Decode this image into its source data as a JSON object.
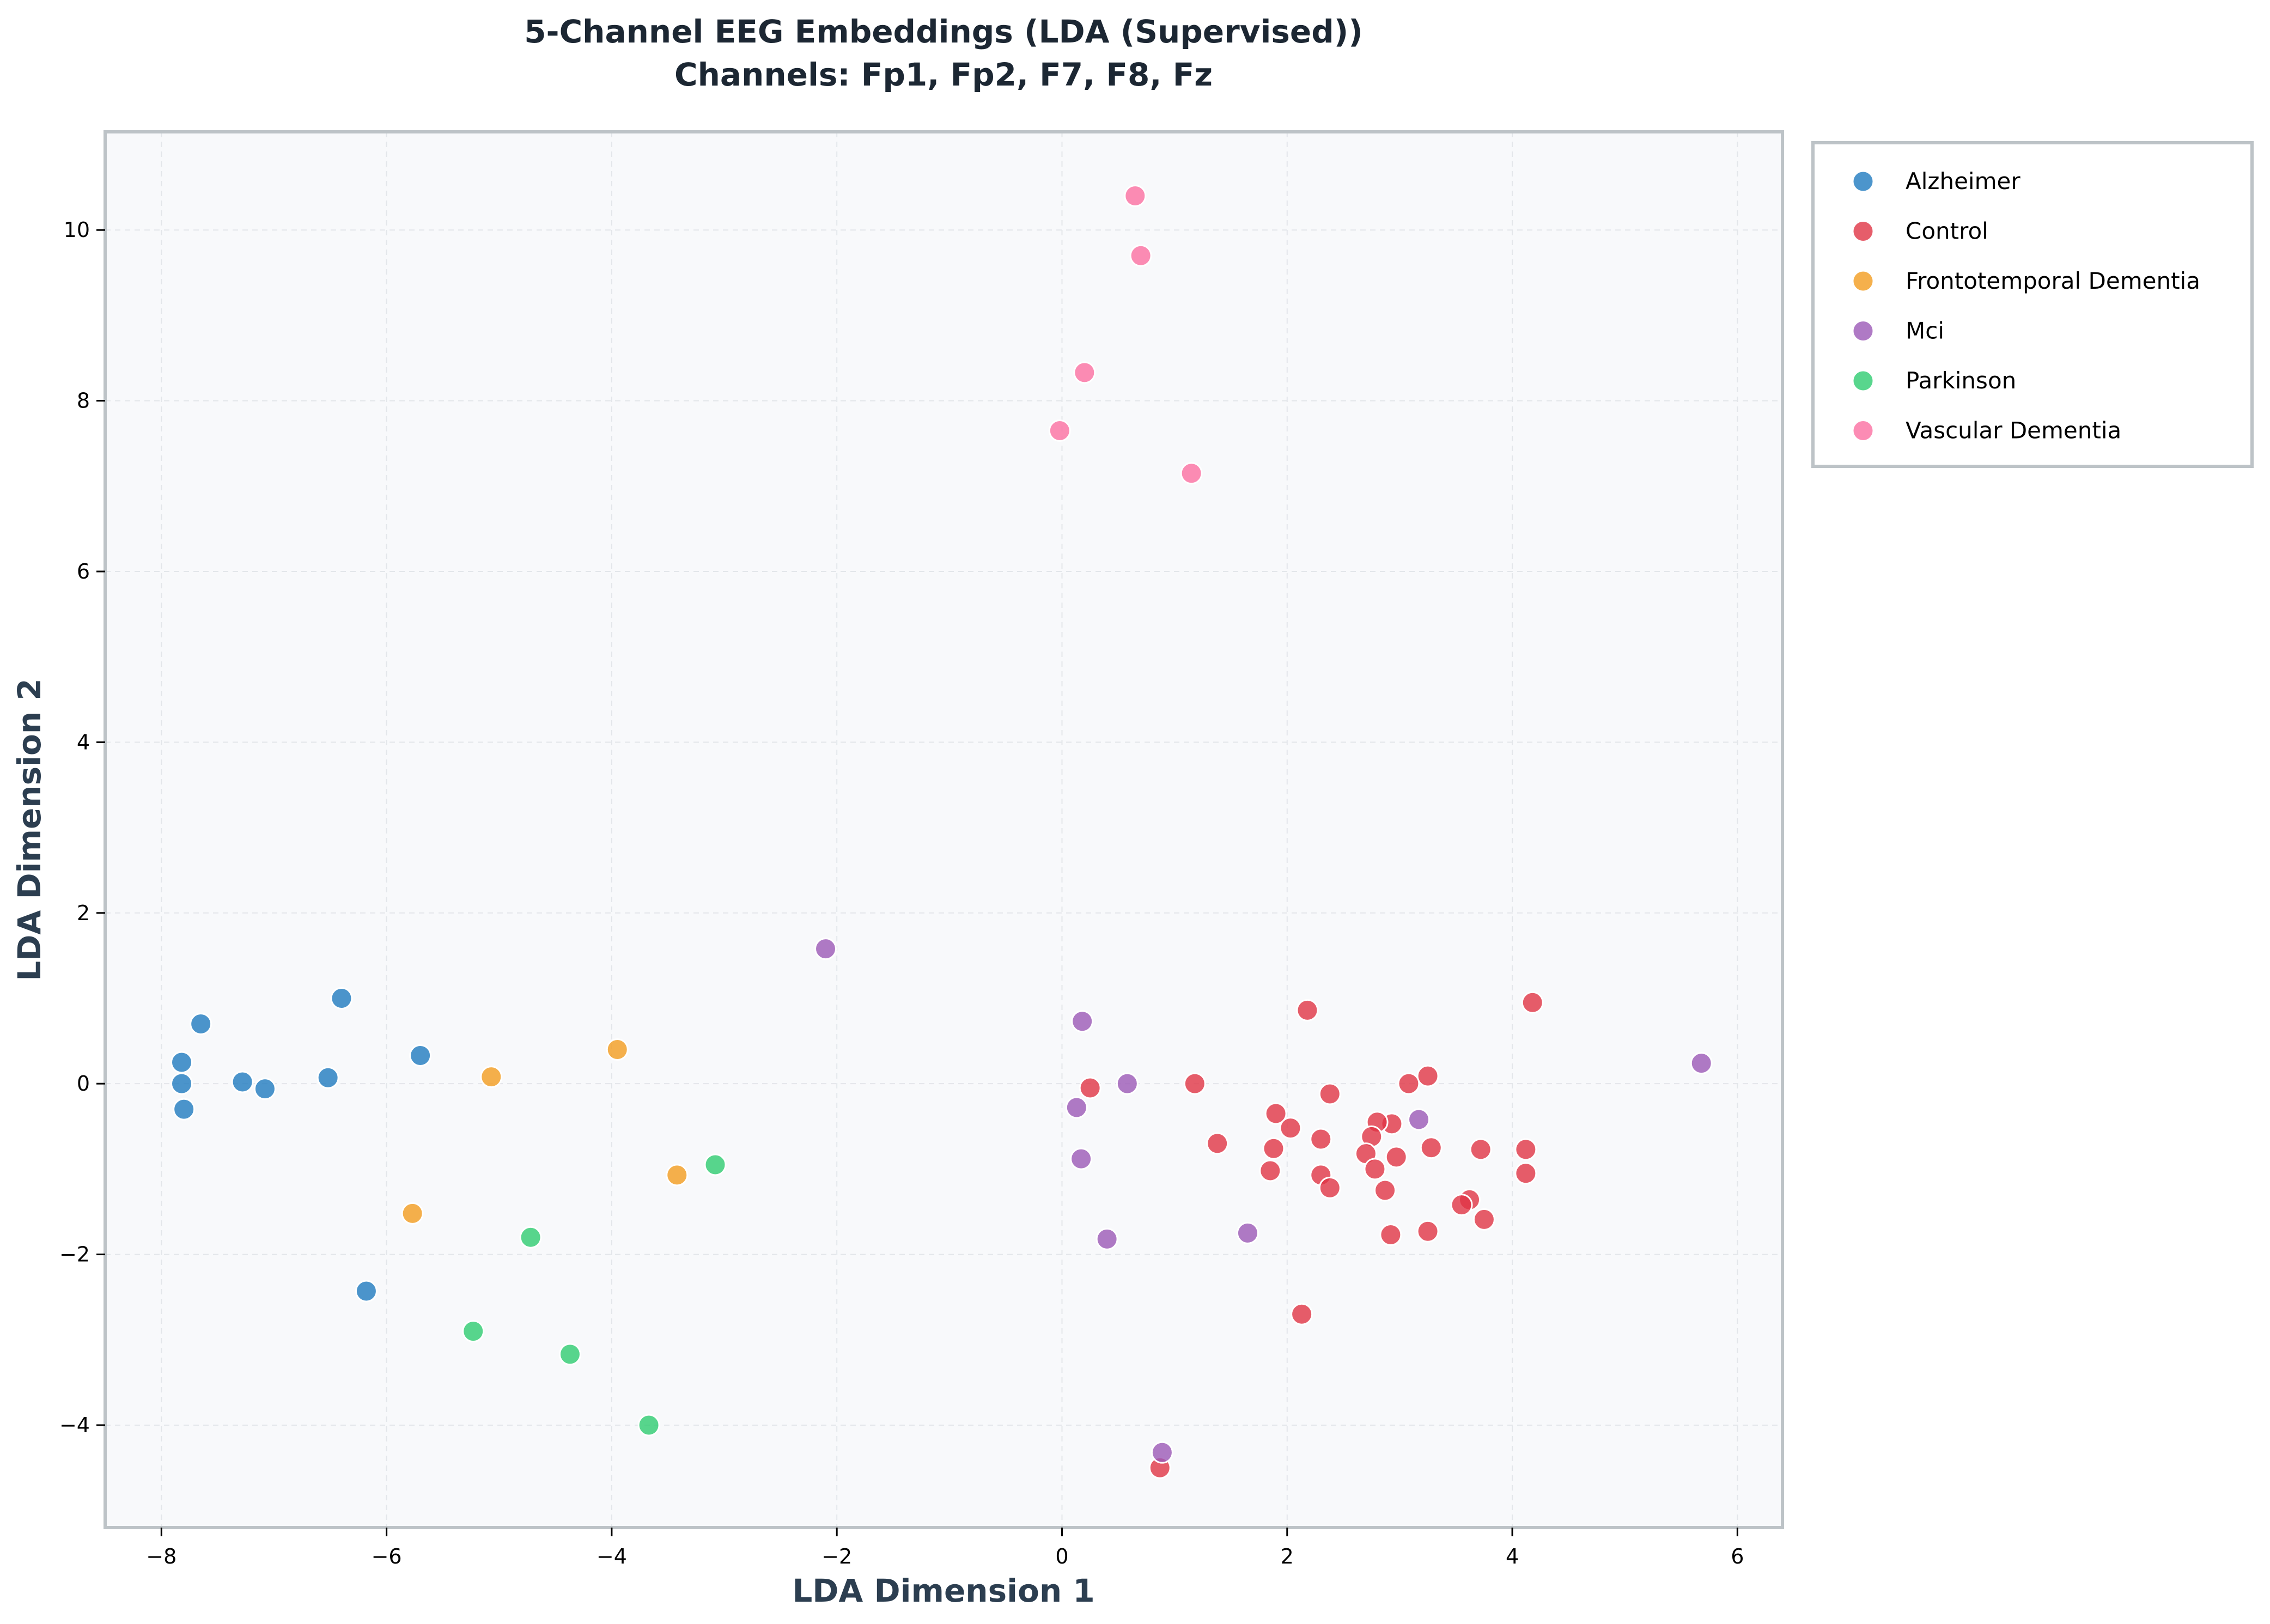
{
  "chart_data": {
    "type": "scatter",
    "title_line1": "5-Channel EEG Embeddings (LDA (Supervised))",
    "title_line2": "Channels: Fp1, Fp2, F7, F8, Fz",
    "xlabel": "LDA Dimension 1",
    "ylabel": "LDA Dimension 2",
    "xlim": [
      -8.5,
      6.4
    ],
    "ylim": [
      -5.2,
      11.15
    ],
    "xticks": [
      -8,
      -6,
      -4,
      -2,
      0,
      2,
      4,
      6
    ],
    "yticks": [
      -4,
      -2,
      0,
      2,
      4,
      6,
      8,
      10
    ],
    "xtick_labels": [
      "−8",
      "−6",
      "−4",
      "−2",
      "0",
      "2",
      "4",
      "6"
    ],
    "ytick_labels": [
      "−4",
      "−2",
      "0",
      "2",
      "4",
      "6",
      "8",
      "10"
    ],
    "grid": true,
    "legend_position": "outside-right-top",
    "series": [
      {
        "name": "Alzheimer",
        "color": "#1f7bbf",
        "points": [
          [
            -7.65,
            0.7
          ],
          [
            -7.82,
            0.25
          ],
          [
            -7.82,
            0.0
          ],
          [
            -7.8,
            -0.3
          ],
          [
            -7.28,
            0.02
          ],
          [
            -7.08,
            -0.06
          ],
          [
            -6.52,
            0.07
          ],
          [
            -6.4,
            1.0
          ],
          [
            -5.7,
            0.33
          ],
          [
            -6.18,
            -2.43
          ]
        ]
      },
      {
        "name": "Control",
        "color": "#e03445",
        "points": [
          [
            0.25,
            -0.05
          ],
          [
            1.18,
            0.0
          ],
          [
            2.18,
            0.86
          ],
          [
            4.18,
            0.95
          ],
          [
            3.25,
            0.09
          ],
          [
            3.08,
            0.0
          ],
          [
            2.38,
            -0.12
          ],
          [
            1.9,
            -0.35
          ],
          [
            2.03,
            -0.52
          ],
          [
            2.93,
            -0.47
          ],
          [
            2.8,
            -0.45
          ],
          [
            2.75,
            -0.62
          ],
          [
            1.38,
            -0.7
          ],
          [
            2.3,
            -0.65
          ],
          [
            1.88,
            -0.76
          ],
          [
            2.7,
            -0.82
          ],
          [
            2.97,
            -0.86
          ],
          [
            3.28,
            -0.75
          ],
          [
            3.72,
            -0.77
          ],
          [
            4.12,
            -0.77
          ],
          [
            1.85,
            -1.02
          ],
          [
            2.3,
            -1.07
          ],
          [
            2.78,
            -1.0
          ],
          [
            2.38,
            -1.22
          ],
          [
            2.87,
            -1.25
          ],
          [
            3.62,
            -1.36
          ],
          [
            3.55,
            -1.42
          ],
          [
            4.12,
            -1.05
          ],
          [
            3.75,
            -1.59
          ],
          [
            2.92,
            -1.77
          ],
          [
            3.25,
            -1.73
          ],
          [
            2.13,
            -2.7
          ],
          [
            0.87,
            -4.5
          ]
        ]
      },
      {
        "name": "Frontotemporal Dementia",
        "color": "#f39c1f",
        "points": [
          [
            -5.07,
            0.08
          ],
          [
            -3.95,
            0.4
          ],
          [
            -3.42,
            -1.07
          ],
          [
            -5.77,
            -1.52
          ]
        ]
      },
      {
        "name": "Mci",
        "color": "#9b59b6",
        "points": [
          [
            -2.1,
            1.58
          ],
          [
            0.18,
            0.73
          ],
          [
            0.58,
            0.0
          ],
          [
            0.13,
            -0.28
          ],
          [
            0.17,
            -0.88
          ],
          [
            0.4,
            -1.82
          ],
          [
            1.65,
            -1.75
          ],
          [
            3.17,
            -0.42
          ],
          [
            5.68,
            0.24
          ],
          [
            0.89,
            -4.32
          ]
        ]
      },
      {
        "name": "Parkinson",
        "color": "#2ecc71",
        "points": [
          [
            -3.08,
            -0.95
          ],
          [
            -4.72,
            -1.8
          ],
          [
            -5.23,
            -2.9
          ],
          [
            -4.37,
            -3.17
          ],
          [
            -3.67,
            -4.0
          ]
        ]
      },
      {
        "name": "Vascular Dementia",
        "color": "#fb6fa1",
        "points": [
          [
            0.65,
            10.4
          ],
          [
            0.7,
            9.7
          ],
          [
            0.2,
            8.33
          ],
          [
            -0.02,
            7.65
          ],
          [
            1.15,
            7.15
          ]
        ]
      }
    ]
  }
}
